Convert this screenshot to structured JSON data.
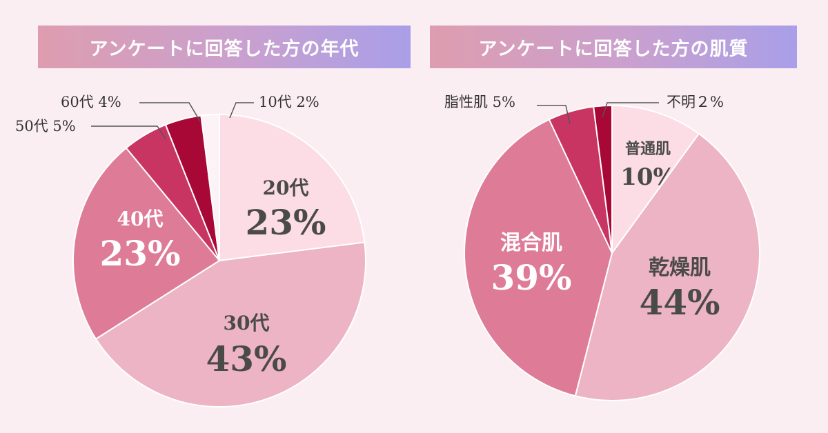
{
  "chart_data": [
    {
      "type": "pie",
      "title": "アンケートに回答した方の年代",
      "slices": [
        {
          "label": "20代",
          "pct": "23%",
          "value": 23,
          "color": "#fcdde6",
          "text": "dark",
          "inside": true
        },
        {
          "label": "30代",
          "pct": "43%",
          "value": 43,
          "color": "#ecb4c4",
          "text": "dark",
          "inside": true
        },
        {
          "label": "40代",
          "pct": "23%",
          "value": 23,
          "color": "#de7c98",
          "text": "light",
          "inside": true
        },
        {
          "label": "50代",
          "pct": "5%",
          "value": 5,
          "color": "#c93563",
          "inside": false,
          "outside_text": "50代 5%"
        },
        {
          "label": "60代",
          "pct": "4%",
          "value": 4,
          "color": "#a70836",
          "inside": false,
          "outside_text": "60代 4%"
        },
        {
          "label": "10代",
          "pct": "2%",
          "value": 2,
          "color": "#fcf3f6",
          "inside": false,
          "outside_text": "10代 2%"
        }
      ]
    },
    {
      "type": "pie",
      "title": "アンケートに回答した方の肌質",
      "slices": [
        {
          "label": "普通肌",
          "pct": "10%",
          "value": 10,
          "color": "#fcdde6",
          "text": "dark",
          "inside": true
        },
        {
          "label": "乾燥肌",
          "pct": "44%",
          "value": 44,
          "color": "#ecb4c4",
          "text": "dark",
          "inside": true
        },
        {
          "label": "混合肌",
          "pct": "39%",
          "value": 39,
          "color": "#de7c98",
          "text": "light",
          "inside": true
        },
        {
          "label": "脂性肌",
          "pct": "5%",
          "value": 5,
          "color": "#c93563",
          "inside": false,
          "outside_text": "脂性肌 5%"
        },
        {
          "label": "不明",
          "pct": "2%",
          "value": 2,
          "color": "#a70836",
          "inside": false,
          "outside_text": "不明２%"
        }
      ]
    }
  ]
}
